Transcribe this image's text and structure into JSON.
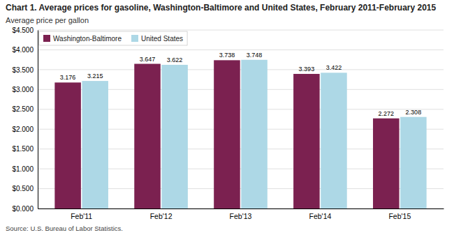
{
  "chart_data": {
    "type": "bar",
    "title": "Chart 1. Average prices for gasoline, Washington-Baltimore and United States, February 2011-February 2015",
    "ylabel": "Average price per gallon",
    "annotations": [
      "Source: U.S. Bureau of Labor Statistics."
    ],
    "categories": [
      "Feb'11",
      "Feb'12",
      "Feb'13",
      "Feb'14",
      "Feb'15"
    ],
    "series": [
      {
        "name": "Washington-Baltimore",
        "color": "#7B2150",
        "values": [
          3.176,
          3.647,
          3.738,
          3.393,
          2.272
        ]
      },
      {
        "name": "United States",
        "color": "#ADD8E6",
        "values": [
          3.215,
          3.622,
          3.748,
          3.422,
          2.308
        ]
      }
    ],
    "ylim": [
      0,
      4.5
    ],
    "yticks": [
      {
        "value": 0.0,
        "label": "$0.000"
      },
      {
        "value": 0.5,
        "label": "$0.500"
      },
      {
        "value": 1.0,
        "label": "$1.000"
      },
      {
        "value": 1.5,
        "label": "$1.500"
      },
      {
        "value": 2.0,
        "label": "$2.000"
      },
      {
        "value": 2.5,
        "label": "$2.500"
      },
      {
        "value": 3.0,
        "label": "$3.000"
      },
      {
        "value": 3.5,
        "label": "$3.500"
      },
      {
        "value": 4.0,
        "label": "$4.000"
      },
      {
        "value": 4.5,
        "label": "$4.500"
      }
    ],
    "grid": true,
    "legend": "upper left",
    "data_labels": true
  }
}
